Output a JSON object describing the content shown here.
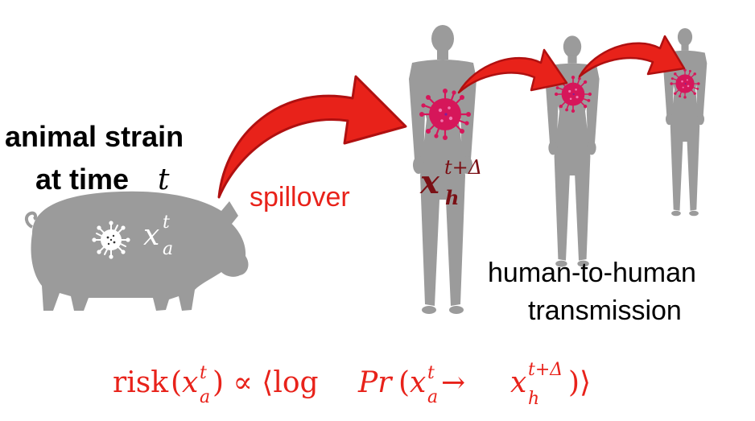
{
  "labels": {
    "animal_strain_line1": "animal strain",
    "animal_strain_line2": "at time",
    "time_symbol": "t",
    "spillover": "spillover",
    "h2h_line1": "human-to-human",
    "h2h_line2": "transmission"
  },
  "symbols": {
    "x": "x",
    "t": "t",
    "a": "a",
    "h": "h",
    "t_plus_delta": "t+Δ"
  },
  "formula": {
    "risk": "risk",
    "open_paren": "(",
    "close_paren_propto": ") ∝ ⟨log",
    "pr": "Pr",
    "paren2": "(",
    "arrow": " → ",
    "close": ")⟩"
  },
  "colors": {
    "silhouette": "#9b9b9b",
    "arrow_red": "#e8221a",
    "arrow_dark": "#b01010",
    "virus": "#d6165a",
    "text_red": "#e8221a",
    "dark_red": "#7a0f14",
    "text_black": "#000000"
  }
}
